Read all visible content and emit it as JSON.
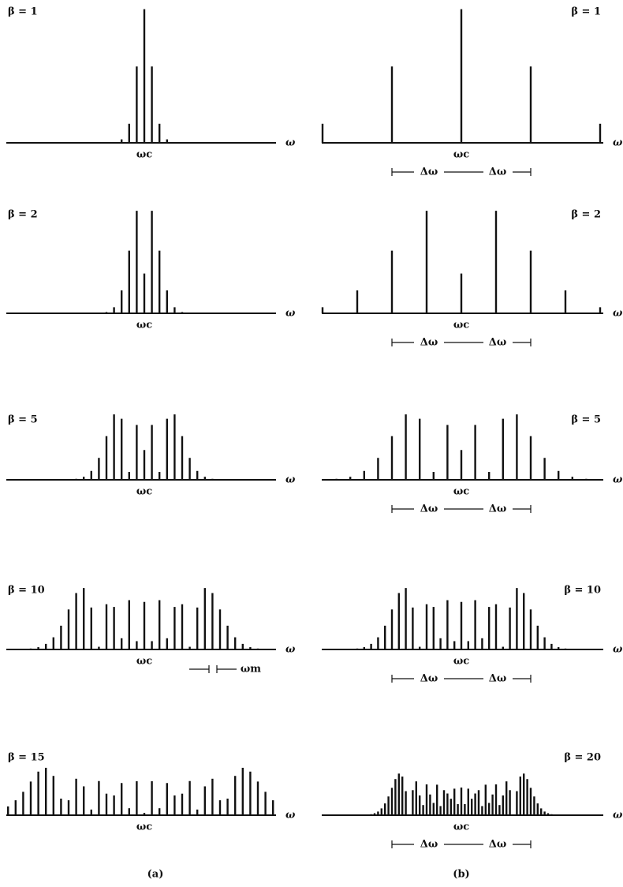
{
  "panels": [
    {
      "label": "β = 1",
      "axis_label": "ω",
      "center_label": "ωc",
      "amplitudes": [
        0.77,
        0.44,
        0.11,
        0.02
      ]
    },
    {
      "label": "β = 1",
      "axis_label": "ω",
      "center_label": "ωc",
      "delta_labels": [
        "Δω",
        "Δω"
      ],
      "amplitudes": [
        0.77,
        0.44,
        0.11,
        0.02
      ]
    },
    {
      "label": "β = 2",
      "axis_label": "ω",
      "center_label": "ωc",
      "amplitudes": [
        0.224,
        0.577,
        0.353,
        0.129,
        0.034,
        0.007
      ]
    },
    {
      "label": "β = 2",
      "axis_label": "ω",
      "center_label": "ωc",
      "delta_labels": [
        "Δω",
        "Δω"
      ],
      "amplitudes": [
        0.224,
        0.577,
        0.353,
        0.129,
        0.034,
        0.007
      ]
    },
    {
      "label": "β = 5",
      "axis_label": "ω",
      "center_label": "ωc",
      "amplitudes": [
        0.178,
        0.328,
        0.047,
        0.365,
        0.391,
        0.261,
        0.131,
        0.053,
        0.018,
        0.006
      ]
    },
    {
      "label": "β = 5",
      "axis_label": "ω",
      "center_label": "ωc",
      "delta_labels": [
        "Δω",
        "Δω"
      ],
      "amplitudes": [
        0.178,
        0.328,
        0.047,
        0.365,
        0.391,
        0.261,
        0.131,
        0.053,
        0.018,
        0.006
      ]
    },
    {
      "label": "β = 10",
      "axis_label": "ω",
      "center_label": "ωc",
      "marker_label": "ωm",
      "amplitudes": [
        0.246,
        0.043,
        0.255,
        0.058,
        0.22,
        0.234,
        0.014,
        0.217,
        0.318,
        0.292,
        0.207,
        0.123,
        0.063,
        0.029,
        0.012,
        0.005
      ]
    },
    {
      "label": "β = 10",
      "axis_label": "ω",
      "center_label": "ωc",
      "delta_labels": [
        "Δω",
        "Δω"
      ],
      "amplitudes": [
        0.246,
        0.043,
        0.255,
        0.058,
        0.22,
        0.234,
        0.014,
        0.217,
        0.318,
        0.292,
        0.207,
        0.123,
        0.063,
        0.029,
        0.012,
        0.005
      ]
    },
    {
      "label": "β = 15",
      "axis_label": "ω",
      "center_label": "ωc",
      "amplitudes": [
        0.014,
        0.205,
        0.042,
        0.194,
        0.119,
        0.13,
        0.206,
        0.034,
        0.174,
        0.22,
        0.09,
        0.1,
        0.237,
        0.286,
        0.263,
        0.203,
        0.141,
        0.09,
        0.053,
        0.029,
        0.015,
        0.007
      ]
    },
    {
      "label": "β = 20",
      "axis_label": "ω",
      "center_label": "ωc",
      "delta_labels": [
        "Δω",
        "Δω"
      ],
      "amplitudes": [
        0.167,
        0.067,
        0.16,
        0.099,
        0.131,
        0.151,
        0.055,
        0.184,
        0.074,
        0.125,
        0.186,
        0.061,
        0.119,
        0.204,
        0.151,
        0.001,
        0.145,
        0.233,
        0.251,
        0.218,
        0.165,
        0.113,
        0.071,
        0.041,
        0.022,
        0.012,
        0.006
      ]
    }
  ],
  "captions": [
    "(a)",
    "(b)"
  ]
}
